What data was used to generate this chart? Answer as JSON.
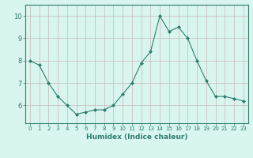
{
  "x": [
    0,
    1,
    2,
    3,
    4,
    5,
    6,
    7,
    8,
    9,
    10,
    11,
    12,
    13,
    14,
    15,
    16,
    17,
    18,
    19,
    20,
    21,
    22,
    23
  ],
  "y": [
    8.0,
    7.8,
    7.0,
    6.4,
    6.0,
    5.6,
    5.7,
    5.8,
    5.8,
    6.0,
    6.5,
    7.0,
    7.9,
    8.4,
    10.0,
    9.3,
    9.5,
    9.0,
    8.0,
    7.1,
    6.4,
    6.4,
    6.3,
    6.2
  ],
  "xlabel": "Humidex (Indice chaleur)",
  "ylim": [
    5.2,
    10.5
  ],
  "xlim": [
    -0.5,
    23.5
  ],
  "yticks": [
    6,
    7,
    8,
    9,
    10
  ],
  "xticks": [
    0,
    1,
    2,
    3,
    4,
    5,
    6,
    7,
    8,
    9,
    10,
    11,
    12,
    13,
    14,
    15,
    16,
    17,
    18,
    19,
    20,
    21,
    22,
    23
  ],
  "line_color": "#2e7d6e",
  "marker_color": "#2e7d6e",
  "bg_color": "#d9f5f0",
  "grid_color": "#c8b8b8",
  "tick_label_color": "#2e7d6e",
  "xlabel_color": "#2e7d6e"
}
